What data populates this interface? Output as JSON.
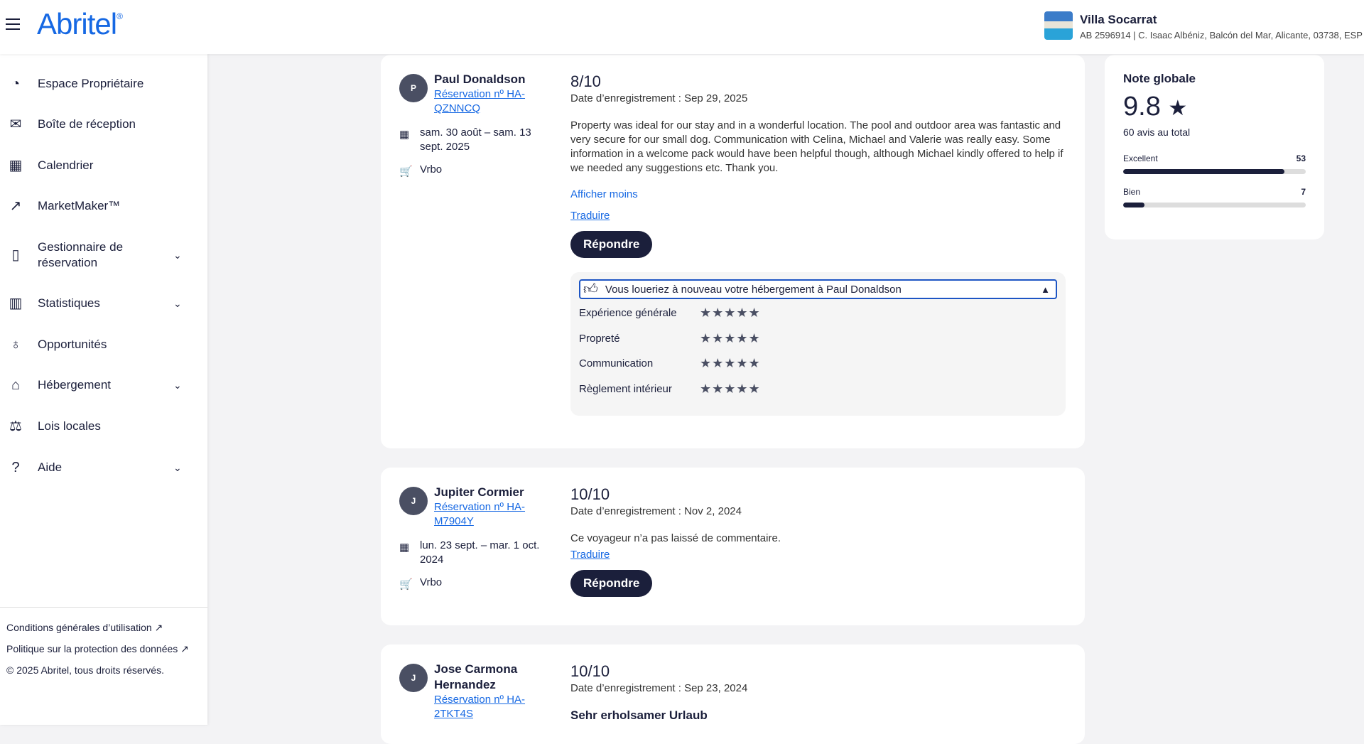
{
  "header": {
    "logo": "Abritel",
    "property_name": "Villa Socarrat",
    "property_details": "AB 2596914 | C. Isaac Albéniz, Balcón del Mar, Alicante, 03738, ESP"
  },
  "sidebar": {
    "items": [
      {
        "label": "Espace Propriétaire",
        "icon": "gauge-icon",
        "expandable": false
      },
      {
        "label": "Boîte de réception",
        "icon": "mail-icon",
        "expandable": false
      },
      {
        "label": "Calendrier",
        "icon": "calendar-icon",
        "expandable": false
      },
      {
        "label": "MarketMaker™",
        "icon": "trend-chart-icon",
        "expandable": false
      },
      {
        "label": "Gestionnaire de réservation",
        "icon": "booking-icon",
        "expandable": true
      },
      {
        "label": "Statistiques",
        "icon": "bar-chart-icon",
        "expandable": true
      },
      {
        "label": "Opportunités",
        "icon": "lightbulb-icon",
        "expandable": false
      },
      {
        "label": "Hébergement",
        "icon": "home-icon",
        "expandable": true
      },
      {
        "label": "Lois locales",
        "icon": "gavel-icon",
        "expandable": false
      },
      {
        "label": "Aide",
        "icon": "help-icon",
        "expandable": true
      }
    ],
    "footer": {
      "terms": "Conditions générales d’utilisation",
      "privacy": "Politique sur la protection des données",
      "copyright": "© 2025 Abritel, tous droits réservés."
    }
  },
  "reviews": [
    {
      "initial": "P",
      "name": "Paul Donaldson",
      "reservation": "Réservation nº HA-QZNNCQ",
      "dates": "sam. 30 août – sam. 13 sept. 2025",
      "source": "Vrbo",
      "score": "8/10",
      "date": "Date d’enregistrement : Sep 29, 2025",
      "text": "Property was ideal for our stay and in a wonderful location. The pool and outdoor area was fantastic and very secure for our small dog. Communication with Celina, Michael and Valerie was really easy. Some information in a welcome pack would have been helpful though, although Michael kindly offered to help if we needed any suggestions etc. Thank you.",
      "show_less": "Afficher moins",
      "translate": "Traduire",
      "reply": "Répondre",
      "rent_again": "Vous loueriez à nouveau votre hébergement à Paul Donaldson",
      "ratings": [
        {
          "label": "Expérience générale",
          "stars": 5
        },
        {
          "label": "Propreté",
          "stars": 5
        },
        {
          "label": "Communication",
          "stars": 5
        },
        {
          "label": "Règlement intérieur",
          "stars": 5
        }
      ]
    },
    {
      "initial": "J",
      "name": "Jupiter Cormier",
      "reservation": "Réservation nº HA-M7904Y",
      "dates": "lun. 23 sept. – mar. 1 oct. 2024",
      "source": "Vrbo",
      "score": "10/10",
      "date": "Date d’enregistrement : Nov 2, 2024",
      "text": "Ce voyageur n’a pas laissé de commentaire.",
      "translate": "Traduire",
      "reply": "Répondre"
    },
    {
      "initial": "J",
      "name": "Jose Carmona Hernandez",
      "reservation": "Réservation nº HA-2TKT4S",
      "score": "10/10",
      "date": "Date d’enregistrement : Sep 23, 2024",
      "title": "Sehr erholsamer Urlaub"
    }
  ],
  "summary": {
    "title": "Note globale",
    "score": "9.8",
    "total": "60 avis au total",
    "bars": [
      {
        "label": "Excellent",
        "count": "53",
        "fraction": 0.883
      },
      {
        "label": "Bien",
        "count": "7",
        "fraction": 0.117
      }
    ]
  }
}
